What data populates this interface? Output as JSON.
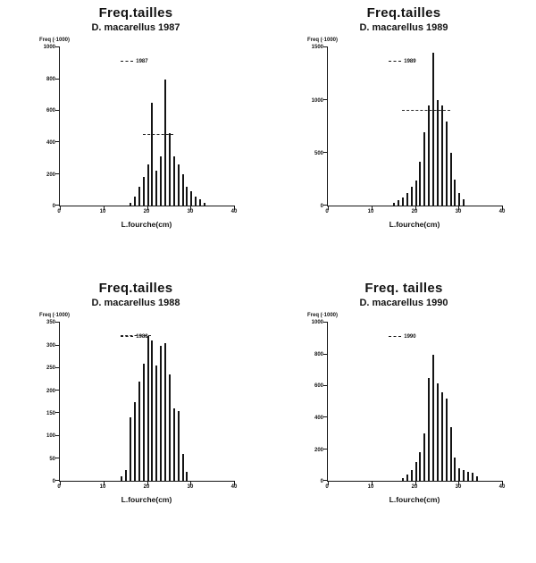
{
  "chart_data": [
    {
      "type": "bar",
      "title": "Freq.tailles",
      "subtitle": "D. macarellus 1987",
      "xlabel": "L.fourche(cm)",
      "ylabel": "Freq (·1000)",
      "legend": "1987",
      "legend_position": "top-center",
      "grid": false,
      "xlim": [
        0,
        40
      ],
      "ylim": [
        0,
        1000
      ],
      "xticks": [
        0,
        10,
        20,
        30,
        40
      ],
      "yticks": [
        0,
        200,
        400,
        600,
        800,
        1000
      ],
      "x": [
        16,
        17,
        18,
        19,
        20,
        21,
        22,
        23,
        24,
        25,
        26,
        27,
        28,
        29,
        30,
        31,
        32,
        33
      ],
      "values": [
        20,
        60,
        120,
        180,
        260,
        650,
        220,
        310,
        800,
        460,
        310,
        260,
        200,
        120,
        90,
        60,
        40,
        20
      ],
      "refline": {
        "y": 450,
        "x1": 19,
        "x2": 26
      }
    },
    {
      "type": "bar",
      "title": "Freq.tailles",
      "subtitle": "D. macarellus 1989",
      "xlabel": "L.fourche(cm)",
      "ylabel": "Freq (·1000)",
      "legend": "1989",
      "legend_position": "top-center",
      "grid": false,
      "xlim": [
        0,
        40
      ],
      "ylim": [
        0,
        1500
      ],
      "xticks": [
        0,
        10,
        20,
        30,
        40
      ],
      "yticks": [
        0,
        500,
        1000,
        1500
      ],
      "x": [
        15,
        16,
        17,
        18,
        19,
        20,
        21,
        22,
        23,
        24,
        25,
        26,
        27,
        28,
        29,
        30,
        31
      ],
      "values": [
        30,
        50,
        80,
        120,
        180,
        240,
        420,
        700,
        950,
        1450,
        1000,
        950,
        800,
        500,
        250,
        120,
        60
      ],
      "refline": {
        "y": 900,
        "x1": 17,
        "x2": 28
      }
    },
    {
      "type": "bar",
      "title": "Freq.tailles",
      "subtitle": "D. macarellus 1988",
      "xlabel": "L.fourche(cm)",
      "ylabel": "Freq (·1000)",
      "legend": "1988",
      "legend_position": "top-center",
      "grid": false,
      "xlim": [
        0,
        40
      ],
      "ylim": [
        0,
        350
      ],
      "xticks": [
        0,
        10,
        20,
        30,
        40
      ],
      "yticks": [
        0,
        50,
        100,
        150,
        200,
        250,
        300,
        350
      ],
      "x": [
        14,
        15,
        16,
        17,
        18,
        19,
        20,
        21,
        22,
        23,
        24,
        25,
        26,
        27,
        28,
        29
      ],
      "values": [
        10,
        25,
        140,
        175,
        220,
        260,
        320,
        310,
        255,
        300,
        305,
        235,
        160,
        155,
        60,
        20
      ],
      "refline": {
        "y": 320,
        "x1": 14,
        "x2": 21
      }
    },
    {
      "type": "bar",
      "title": "Freq. tailles",
      "subtitle": "D. macarellus 1990",
      "xlabel": "L.fourche(cm)",
      "ylabel": "Freq (·1000)",
      "legend": "1990",
      "legend_position": "top-center",
      "grid": false,
      "xlim": [
        0,
        40
      ],
      "ylim": [
        0,
        1000
      ],
      "xticks": [
        0,
        10,
        20,
        30,
        40
      ],
      "yticks": [
        0,
        200,
        400,
        600,
        800,
        1000
      ],
      "x": [
        17,
        18,
        19,
        20,
        21,
        22,
        23,
        24,
        25,
        26,
        27,
        28,
        29,
        30,
        31,
        32,
        33,
        34
      ],
      "values": [
        20,
        40,
        70,
        120,
        180,
        300,
        650,
        800,
        620,
        560,
        520,
        340,
        150,
        80,
        70,
        60,
        50,
        30
      ],
      "refline": null
    }
  ]
}
